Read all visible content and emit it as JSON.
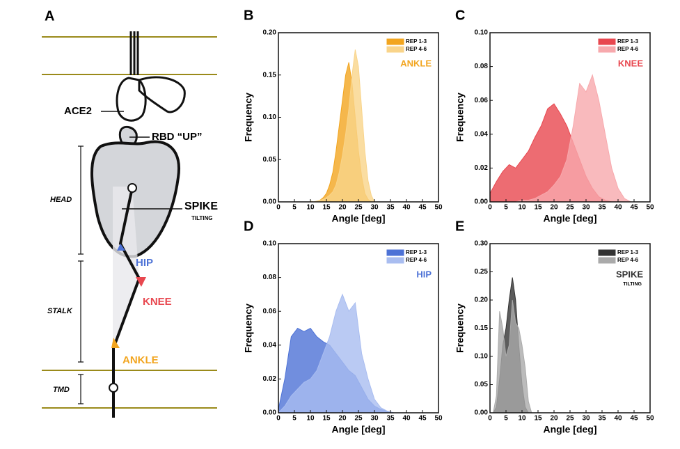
{
  "diagram": {
    "panel": "A",
    "ace2": "ACE2",
    "rbd": "RBD “UP”",
    "spike": "SPIKE",
    "tilting": "TILTING",
    "hip": "HIP",
    "knee": "KNEE",
    "ankle": "ANKLE",
    "head": "HEAD",
    "stalk": "STALK",
    "tmd": "TMD"
  },
  "chart_data": [
    {
      "type": "area",
      "panel": "B",
      "annotation": "ANKLE",
      "xlabel": "Angle [deg]",
      "ylabel": "Frequency",
      "x": [
        10,
        11,
        12,
        13,
        14,
        15,
        16,
        17,
        18,
        19,
        20,
        21,
        22,
        23,
        24,
        25,
        26,
        27,
        28,
        29,
        30
      ],
      "series": [
        {
          "name": "REP 1-3",
          "color": "#f2a51f",
          "values": [
            0,
            0,
            0,
            0.002,
            0.005,
            0.01,
            0.02,
            0.035,
            0.06,
            0.09,
            0.12,
            0.15,
            0.165,
            0.14,
            0.1,
            0.06,
            0.03,
            0.01,
            0.003,
            0,
            0
          ]
        },
        {
          "name": "REP 4-6",
          "color": "#f9d48a",
          "values": [
            0.001,
            0,
            0.001,
            0.002,
            0.003,
            0.005,
            0.008,
            0.012,
            0.02,
            0.035,
            0.055,
            0.08,
            0.11,
            0.15,
            0.18,
            0.16,
            0.11,
            0.06,
            0.025,
            0.008,
            0
          ]
        }
      ],
      "xlim": [
        0,
        50
      ],
      "xticks": [
        0,
        5,
        10,
        15,
        20,
        25,
        30,
        35,
        40,
        45,
        50
      ],
      "ylim": [
        0,
        0.2
      ],
      "yticks": [
        {
          "value": 0,
          "label": "0.00"
        },
        {
          "value": 0.05,
          "label": "0.05"
        },
        {
          "value": 0.1,
          "label": "0.10"
        },
        {
          "value": 0.15,
          "label": "0.15"
        },
        {
          "value": 0.2,
          "label": "0.20"
        }
      ]
    },
    {
      "type": "area",
      "panel": "C",
      "annotation": "KNEE",
      "xlabel": "Angle [deg]",
      "ylabel": "Frequency",
      "x": [
        0,
        2,
        4,
        6,
        8,
        10,
        12,
        14,
        16,
        18,
        20,
        22,
        24,
        26,
        28,
        30,
        32,
        34,
        36,
        38,
        40,
        42,
        44
      ],
      "series": [
        {
          "name": "REP 1-3",
          "color": "#e8474f",
          "values": [
            0.005,
            0.012,
            0.018,
            0.022,
            0.02,
            0.025,
            0.03,
            0.038,
            0.045,
            0.055,
            0.058,
            0.052,
            0.045,
            0.035,
            0.025,
            0.015,
            0.008,
            0.003,
            0.001,
            0,
            0,
            0,
            0
          ]
        },
        {
          "name": "REP 4-6",
          "color": "#f7a9ad",
          "values": [
            0,
            0,
            0,
            0,
            0,
            0.001,
            0.001,
            0.002,
            0.004,
            0.006,
            0.01,
            0.015,
            0.025,
            0.045,
            0.07,
            0.065,
            0.075,
            0.06,
            0.04,
            0.02,
            0.008,
            0.002,
            0
          ]
        }
      ],
      "xlim": [
        0,
        50
      ],
      "xticks": [
        0,
        5,
        10,
        15,
        20,
        25,
        30,
        35,
        40,
        45,
        50
      ],
      "ylim": [
        0,
        0.1
      ],
      "yticks": [
        {
          "value": 0,
          "label": "0.00"
        },
        {
          "value": 0.02,
          "label": "0.02"
        },
        {
          "value": 0.04,
          "label": "0.04"
        },
        {
          "value": 0.06,
          "label": "0.06"
        },
        {
          "value": 0.08,
          "label": "0.08"
        },
        {
          "value": 0.1,
          "label": "0.10"
        }
      ]
    },
    {
      "type": "area",
      "panel": "D",
      "annotation": "HIP",
      "xlabel": "Angle [deg]",
      "ylabel": "Frequency",
      "x": [
        0,
        2,
        4,
        6,
        8,
        10,
        12,
        14,
        16,
        18,
        20,
        22,
        24,
        26,
        28,
        30,
        32,
        34,
        36,
        38
      ],
      "series": [
        {
          "name": "REP 1-3",
          "color": "#4d72d6",
          "values": [
            0.002,
            0.02,
            0.045,
            0.05,
            0.048,
            0.05,
            0.045,
            0.042,
            0.04,
            0.035,
            0.03,
            0.025,
            0.022,
            0.015,
            0.008,
            0.004,
            0.002,
            0.001,
            0,
            0
          ]
        },
        {
          "name": "REP 4-6",
          "color": "#a9bdf0",
          "values": [
            0,
            0.004,
            0.01,
            0.014,
            0.018,
            0.02,
            0.025,
            0.035,
            0.045,
            0.06,
            0.07,
            0.06,
            0.065,
            0.035,
            0.02,
            0.008,
            0.003,
            0.001,
            0,
            0
          ]
        }
      ],
      "xlim": [
        0,
        50
      ],
      "xticks": [
        0,
        5,
        10,
        15,
        20,
        25,
        30,
        35,
        40,
        45,
        50
      ],
      "ylim": [
        0,
        0.1
      ],
      "yticks": [
        {
          "value": 0,
          "label": "0.00"
        },
        {
          "value": 0.02,
          "label": "0.02"
        },
        {
          "value": 0.04,
          "label": "0.04"
        },
        {
          "value": 0.06,
          "label": "0.06"
        },
        {
          "value": 0.08,
          "label": "0.08"
        },
        {
          "value": 0.1,
          "label": "0.10"
        }
      ]
    },
    {
      "type": "area",
      "panel": "E",
      "annotation": "SPIKE",
      "annotation_sub": "TILTING",
      "xlabel": "Angle [deg]",
      "ylabel": "Frequency",
      "x": [
        0,
        1,
        2,
        3,
        4,
        5,
        6,
        7,
        8,
        9,
        10,
        11,
        12,
        13,
        14
      ],
      "series": [
        {
          "name": "REP 1-3",
          "color": "#333333",
          "values": [
            0,
            0,
            0.01,
            0.06,
            0.12,
            0.15,
            0.2,
            0.24,
            0.2,
            0.12,
            0.05,
            0.01,
            0,
            0,
            0
          ]
        },
        {
          "name": "REP 4-6",
          "color": "#aaaaaa",
          "values": [
            0,
            0,
            0.03,
            0.18,
            0.15,
            0.1,
            0.12,
            0.2,
            0.16,
            0.15,
            0.12,
            0.08,
            0.02,
            0,
            0
          ]
        }
      ],
      "xlim": [
        0,
        50
      ],
      "xticks": [
        0,
        5,
        10,
        15,
        20,
        25,
        30,
        35,
        40,
        45,
        50
      ],
      "ylim": [
        0,
        0.3
      ],
      "yticks": [
        {
          "value": 0,
          "label": "0.00"
        },
        {
          "value": 0.05,
          "label": "0.05"
        },
        {
          "value": 0.1,
          "label": "0.10"
        },
        {
          "value": 0.15,
          "label": "0.15"
        },
        {
          "value": 0.2,
          "label": "0.20"
        },
        {
          "value": 0.25,
          "label": "0.25"
        },
        {
          "value": 0.3,
          "label": "0.30"
        }
      ]
    }
  ]
}
